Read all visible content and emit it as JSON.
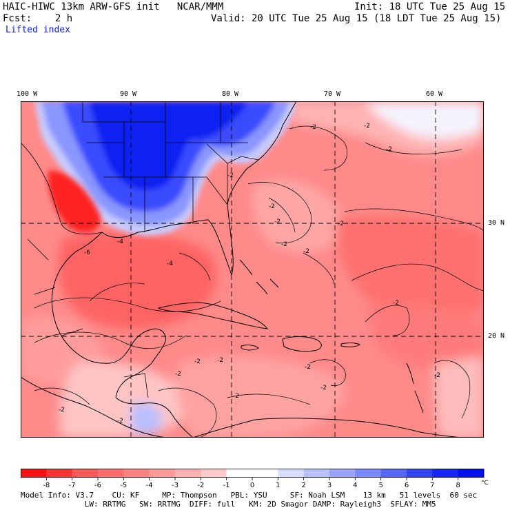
{
  "header": {
    "title": "HAIC-HIWC 13km ARW-GFS init   NCAR/MMM",
    "init": "Init: 18 UTC Tue 25 Aug 15",
    "fcst": "Fcst:    2 h",
    "valid": "Valid: 20 UTC Tue 25 Aug 15 (18 LDT Tue 25 Aug 15)",
    "field": "Lifted index"
  },
  "map": {
    "lon_labels": [
      "100 W",
      "90 W",
      "80 W",
      "70 W",
      "60 W"
    ],
    "lat_labels": [
      "30 N",
      "20 N"
    ],
    "contour_labels": [
      "-2",
      "-2",
      "-2",
      "-2",
      "-2",
      "-2",
      "-2",
      "-2",
      "-2",
      "-4",
      "-4",
      "-6",
      "-2",
      "-2",
      "-2",
      "-2",
      "-2",
      "-2",
      "-2",
      "-2",
      "-2",
      "-2",
      "-2"
    ]
  },
  "colorbar": {
    "unit": "°C",
    "labels": [
      "-8",
      "-7",
      "-6",
      "-5",
      "-4",
      "-3",
      "-2",
      "-1",
      "0",
      "1",
      "2",
      "3",
      "4",
      "5",
      "6",
      "7",
      "8"
    ],
    "colors": [
      "#ff1010",
      "#ff3434",
      "#ff5858",
      "#ff6e6e",
      "#ff8282",
      "#ff9898",
      "#ffb0b0",
      "#ffcccc",
      "#ffffff",
      "#ffffff",
      "#d8dcff",
      "#b8c0ff",
      "#9aa4ff",
      "#7c88ff",
      "#5866ff",
      "#3444ff",
      "#1428ff",
      "#0010ee"
    ]
  },
  "model_info": {
    "line1": "Model Info: V3.7    CU: KF     MP: Thompson   PBL: YSU     SF: Noah LSM    13 km   51 levels  60 sec",
    "line2": "              LW: RRTMG   SW: RRTMG  DIFF: full   KM: 2D Smagor DAMP: Rayleigh3  SFLAY: MM5"
  }
}
